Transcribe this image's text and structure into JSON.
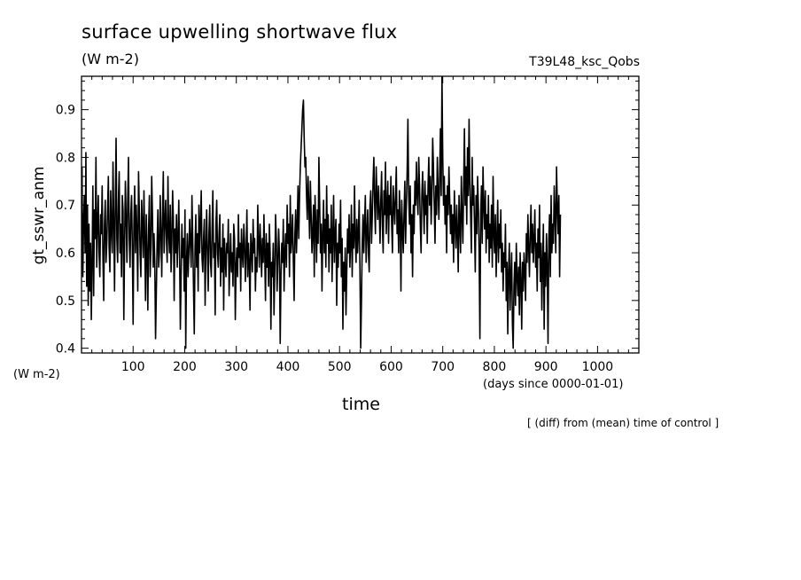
{
  "chart_data": {
    "type": "line",
    "title": "surface upwelling shortwave flux",
    "units": "(W m-2)",
    "experiment": "T39L48_ksc_Qobs",
    "ylabel": "gt_sswr_anm",
    "yunits": "(W m-2)",
    "xlabel": "time",
    "xunits": "(days since 0000-01-01)",
    "note": "[ (diff) from (mean) time of control ]",
    "xlim": [
      0,
      1080
    ],
    "ylim": [
      0.39,
      0.97
    ],
    "xticks": [
      100,
      200,
      300,
      400,
      500,
      600,
      700,
      800,
      900,
      1000
    ],
    "yticks": [
      0.4,
      0.5,
      0.6,
      0.7,
      0.8,
      0.9
    ],
    "ytick_labels": [
      "0.4",
      "0.5",
      "0.6",
      "0.7",
      "0.8",
      "0.9"
    ],
    "series": [
      {
        "x_start": 1,
        "x_step": 1.5,
        "values": [
          0.78,
          0.55,
          0.66,
          0.72,
          0.6,
          0.81,
          0.53,
          0.7,
          0.49,
          0.66,
          0.52,
          0.62,
          0.46,
          0.58,
          0.74,
          0.51,
          0.69,
          0.63,
          0.8,
          0.57,
          0.66,
          0.72,
          0.6,
          0.55,
          0.68,
          0.64,
          0.74,
          0.59,
          0.5,
          0.66,
          0.71,
          0.58,
          0.62,
          0.69,
          0.76,
          0.61,
          0.56,
          0.73,
          0.65,
          0.6,
          0.79,
          0.67,
          0.52,
          0.7,
          0.84,
          0.63,
          0.58,
          0.71,
          0.77,
          0.6,
          0.66,
          0.55,
          0.72,
          0.69,
          0.46,
          0.62,
          0.75,
          0.67,
          0.58,
          0.71,
          0.8,
          0.63,
          0.57,
          0.68,
          0.72,
          0.61,
          0.45,
          0.66,
          0.74,
          0.6,
          0.7,
          0.64,
          0.52,
          0.77,
          0.69,
          0.6,
          0.55,
          0.71,
          0.66,
          0.59,
          0.73,
          0.63,
          0.5,
          0.68,
          0.6,
          0.48,
          0.65,
          0.72,
          0.55,
          0.61,
          0.76,
          0.68,
          0.57,
          0.64,
          0.58,
          0.42,
          0.52,
          0.62,
          0.69,
          0.57,
          0.6,
          0.72,
          0.64,
          0.55,
          0.68,
          0.77,
          0.6,
          0.66,
          0.71,
          0.63,
          0.58,
          0.76,
          0.64,
          0.6,
          0.7,
          0.56,
          0.62,
          0.73,
          0.67,
          0.5,
          0.65,
          0.6,
          0.68,
          0.57,
          0.63,
          0.71,
          0.6,
          0.44,
          0.55,
          0.66,
          0.59,
          0.63,
          0.52,
          0.69,
          0.4,
          0.58,
          0.64,
          0.55,
          0.6,
          0.67,
          0.62,
          0.57,
          0.72,
          0.63,
          0.53,
          0.43,
          0.61,
          0.68,
          0.57,
          0.64,
          0.52,
          0.7,
          0.6,
          0.66,
          0.73,
          0.59,
          0.56,
          0.63,
          0.67,
          0.49,
          0.61,
          0.69,
          0.6,
          0.52,
          0.64,
          0.7,
          0.58,
          0.55,
          0.65,
          0.73,
          0.59,
          0.62,
          0.47,
          0.66,
          0.71,
          0.6,
          0.57,
          0.64,
          0.68,
          0.53,
          0.61,
          0.56,
          0.66,
          0.48,
          0.63,
          0.59,
          0.55,
          0.62,
          0.6,
          0.67,
          0.51,
          0.58,
          0.64,
          0.56,
          0.6,
          0.53,
          0.66,
          0.63,
          0.46,
          0.57,
          0.61,
          0.55,
          0.68,
          0.59,
          0.62,
          0.52,
          0.65,
          0.6,
          0.57,
          0.66,
          0.62,
          0.54,
          0.6,
          0.69,
          0.55,
          0.62,
          0.58,
          0.48,
          0.64,
          0.61,
          0.56,
          0.67,
          0.6,
          0.63,
          0.52,
          0.59,
          0.56,
          0.7,
          0.62,
          0.57,
          0.66,
          0.61,
          0.55,
          0.63,
          0.58,
          0.68,
          0.6,
          0.5,
          0.64,
          0.57,
          0.62,
          0.53,
          0.66,
          0.6,
          0.44,
          0.58,
          0.55,
          0.62,
          0.47,
          0.56,
          0.68,
          0.63,
          0.52,
          0.58,
          0.65,
          0.6,
          0.41,
          0.55,
          0.62,
          0.58,
          0.67,
          0.52,
          0.6,
          0.64,
          0.57,
          0.7,
          0.62,
          0.66,
          0.55,
          0.72,
          0.6,
          0.63,
          0.68,
          0.58,
          0.5,
          0.64,
          0.69,
          0.6,
          0.66,
          0.74,
          0.63,
          0.72,
          0.78,
          0.82,
          0.86,
          0.9,
          0.92,
          0.84,
          0.78,
          0.8,
          0.72,
          0.67,
          0.76,
          0.7,
          0.63,
          0.75,
          0.68,
          0.6,
          0.64,
          0.7,
          0.55,
          0.72,
          0.66,
          0.58,
          0.69,
          0.62,
          0.8,
          0.7,
          0.6,
          0.66,
          0.52,
          0.64,
          0.71,
          0.6,
          0.67,
          0.57,
          0.74,
          0.62,
          0.68,
          0.56,
          0.65,
          0.6,
          0.7,
          0.54,
          0.63,
          0.72,
          0.58,
          0.64,
          0.67,
          0.49,
          0.62,
          0.57,
          0.66,
          0.6,
          0.71,
          0.55,
          0.63,
          0.44,
          0.58,
          0.52,
          0.61,
          0.47,
          0.56,
          0.65,
          0.6,
          0.68,
          0.57,
          0.62,
          0.7,
          0.55,
          0.66,
          0.61,
          0.74,
          0.63,
          0.58,
          0.67,
          0.6,
          0.64,
          0.71,
          0.57,
          0.4,
          0.5,
          0.62,
          0.68,
          0.6,
          0.66,
          0.72,
          0.58,
          0.64,
          0.69,
          0.6,
          0.56,
          0.7,
          0.73,
          0.62,
          0.68,
          0.75,
          0.8,
          0.7,
          0.64,
          0.78,
          0.72,
          0.67,
          0.74,
          0.69,
          0.62,
          0.71,
          0.77,
          0.66,
          0.6,
          0.73,
          0.68,
          0.79,
          0.64,
          0.7,
          0.75,
          0.62,
          0.72,
          0.68,
          0.76,
          0.66,
          0.6,
          0.74,
          0.7,
          0.66,
          0.72,
          0.78,
          0.64,
          0.69,
          0.6,
          0.73,
          0.67,
          0.52,
          0.71,
          0.65,
          0.6,
          0.68,
          0.75,
          0.62,
          0.7,
          0.77,
          0.88,
          0.72,
          0.66,
          0.74,
          0.6,
          0.68,
          0.55,
          0.7,
          0.64,
          0.75,
          0.7,
          0.79,
          0.72,
          0.68,
          0.8,
          0.74,
          0.66,
          0.6,
          0.72,
          0.77,
          0.7,
          0.64,
          0.75,
          0.68,
          0.72,
          0.62,
          0.74,
          0.8,
          0.7,
          0.76,
          0.66,
          0.72,
          0.84,
          0.78,
          0.7,
          0.62,
          0.74,
          0.68,
          0.8,
          0.73,
          0.67,
          0.76,
          0.86,
          0.72,
          0.97,
          0.8,
          0.7,
          0.76,
          0.66,
          0.72,
          0.6,
          0.74,
          0.68,
          0.78,
          0.71,
          0.64,
          0.7,
          0.62,
          0.68,
          0.58,
          0.73,
          0.66,
          0.61,
          0.7,
          0.64,
          0.56,
          0.72,
          0.66,
          0.6,
          0.76,
          0.68,
          0.62,
          0.74,
          0.86,
          0.7,
          0.78,
          0.66,
          0.82,
          0.72,
          0.88,
          0.75,
          0.68,
          0.6,
          0.8,
          0.7,
          0.74,
          0.66,
          0.56,
          0.72,
          0.64,
          0.76,
          0.7,
          0.6,
          0.42,
          0.68,
          0.74,
          0.62,
          0.78,
          0.7,
          0.65,
          0.73,
          0.6,
          0.68,
          0.63,
          0.72,
          0.58,
          0.66,
          0.61,
          0.7,
          0.57,
          0.76,
          0.64,
          0.6,
          0.68,
          0.55,
          0.63,
          0.71,
          0.58,
          0.66,
          0.61,
          0.69,
          0.56,
          0.62,
          0.52,
          0.6,
          0.57,
          0.66,
          0.5,
          0.58,
          0.43,
          0.56,
          0.62,
          0.48,
          0.55,
          0.6,
          0.45,
          0.4,
          0.53,
          0.58,
          0.49,
          0.62,
          0.55,
          0.51,
          0.57,
          0.47,
          0.6,
          0.54,
          0.44,
          0.58,
          0.52,
          0.6,
          0.56,
          0.5,
          0.64,
          0.58,
          0.68,
          0.61,
          0.55,
          0.64,
          0.7,
          0.6,
          0.66,
          0.58,
          0.63,
          0.69,
          0.57,
          0.62,
          0.52,
          0.65,
          0.59,
          0.7,
          0.54,
          0.62,
          0.48,
          0.58,
          0.66,
          0.44,
          0.6,
          0.53,
          0.64,
          0.57,
          0.41,
          0.63,
          0.68,
          0.55,
          0.72,
          0.6,
          0.66,
          0.62,
          0.74,
          0.68,
          0.6,
          0.78,
          0.7,
          0.64,
          0.72,
          0.55,
          0.68
        ]
      }
    ],
    "grid": false,
    "legend": "none"
  }
}
